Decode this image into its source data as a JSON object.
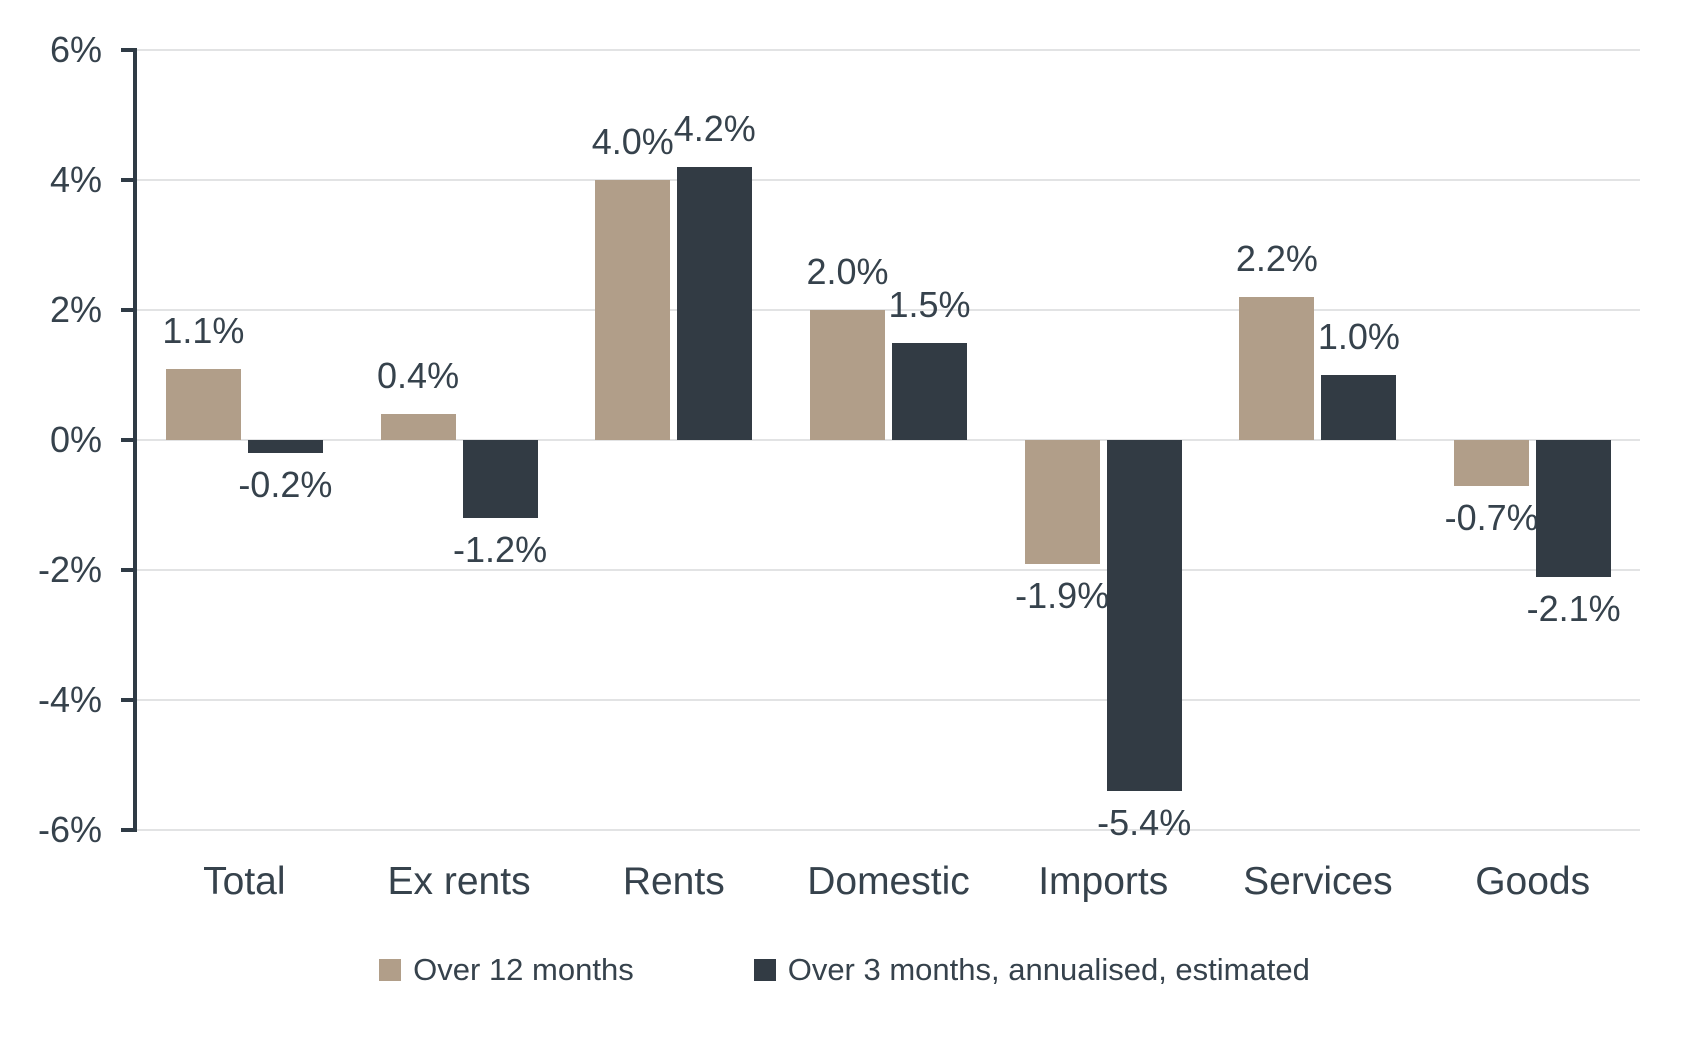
{
  "chart_data": {
    "type": "bar",
    "categories": [
      "Total",
      "Ex rents",
      "Rents",
      "Domestic",
      "Imports",
      "Services",
      "Goods"
    ],
    "series": [
      {
        "name": "Over 12 months",
        "color": "#b19e89",
        "values": [
          1.1,
          0.4,
          4.0,
          2.0,
          -1.9,
          2.2,
          -0.7
        ],
        "labels": [
          "1.1%",
          "0.4%",
          "4.0%",
          "2.0%",
          "-1.9%",
          "2.2%",
          "-0.7%"
        ]
      },
      {
        "name": "Over 3 months, annualised, estimated",
        "color": "#323b44",
        "values": [
          -0.2,
          -1.2,
          4.2,
          1.5,
          -5.4,
          1.0,
          -2.1
        ],
        "labels": [
          "-0.2%",
          "-1.2%",
          "4.2%",
          "1.5%",
          "-5.4%",
          "1.0%",
          "-2.1%"
        ]
      }
    ],
    "title": "",
    "xlabel": "",
    "ylabel": "",
    "y_axis": {
      "tick_labels": [
        "6%",
        "4%",
        "2%",
        "0%",
        "-2%",
        "-4%",
        "-6%"
      ],
      "tick_values": [
        6,
        4,
        2,
        0,
        -2,
        -4,
        -6
      ],
      "min": -6,
      "max": 6
    },
    "grid": true,
    "legend_position": "bottom"
  },
  "colors": {
    "background": "#ffffff",
    "text": "#36424c",
    "gridline": "#e2e3e4",
    "axis": "#2f3b45"
  }
}
